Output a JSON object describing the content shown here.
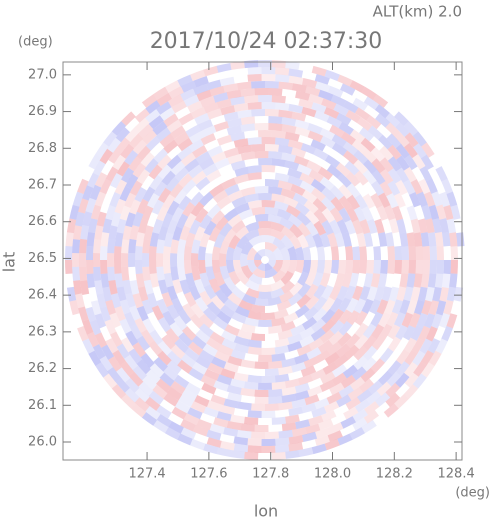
{
  "chart_data": {
    "type": "radar-field",
    "title": "2017/10/24 02:37:30",
    "subtitle": "ALT(km) 2.0",
    "x_label": "lon",
    "y_label": "lat",
    "x_unit": "(deg)",
    "y_unit": "(deg)",
    "xlim": [
      127.128,
      128.419
    ],
    "ylim": [
      25.951,
      27.035
    ],
    "xticks": [
      127.4,
      127.6,
      127.8,
      {
        "value": 128.0,
        "label": "128.0"
      },
      128.2,
      128.4
    ],
    "yticks": [
      {
        "value": 26.0,
        "label": "26.0"
      },
      26.1,
      26.2,
      26.3,
      26.4,
      26.5,
      26.6,
      26.7,
      26.8,
      26.9,
      {
        "value": 27.0,
        "label": "27.0"
      }
    ]
  }
}
